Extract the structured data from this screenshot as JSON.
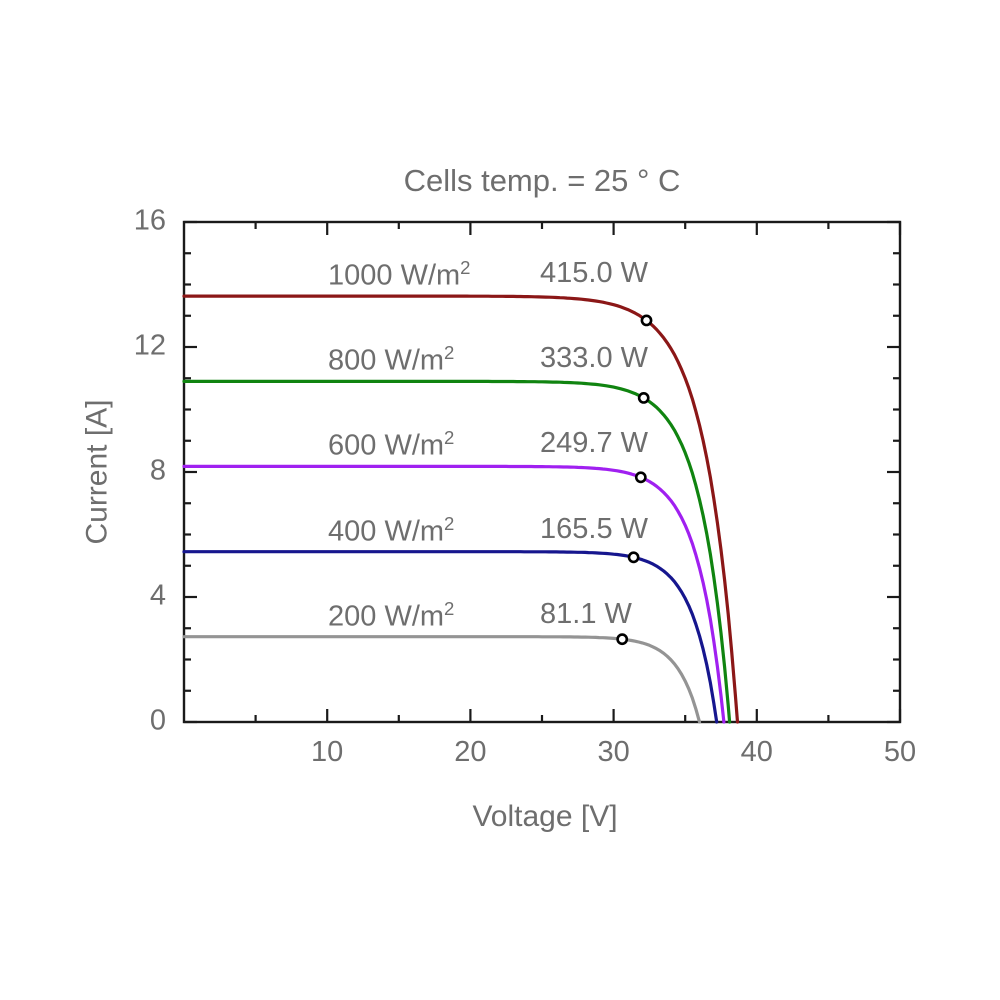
{
  "chart_data": {
    "type": "line",
    "title": "Cells temp. = 25 ° C",
    "xlabel": "Voltage [V]",
    "ylabel": "Current [A]",
    "xlim": [
      0,
      50
    ],
    "ylim": [
      0,
      16
    ],
    "x_major_ticks": [
      10,
      20,
      30,
      40,
      50
    ],
    "x_minor_tick_step": 5,
    "y_major_ticks": [
      0,
      4,
      8,
      12,
      16
    ],
    "y_minor_tick_step": 1,
    "grid": false,
    "legend_position": "inline-labels-above-curves",
    "axis_color": "#1a1a1a",
    "text_color": "#6e6e6e",
    "marker": {
      "shape": "circle",
      "fill": "#ffffff",
      "stroke": "#000000"
    },
    "series": [
      {
        "irradiance": 1000,
        "label_base": "1000 W/m",
        "label_sup": "2",
        "power_label": "415.0 W",
        "mpp_p": 415.0,
        "color": "#8b1717",
        "isc": 13.63,
        "voc": 38.65,
        "mpp_v": 32.3,
        "mpp_i": 12.85
      },
      {
        "irradiance": 800,
        "label_base": "800 W/m",
        "label_sup": "2",
        "power_label": "333.0 W",
        "mpp_p": 333.0,
        "color": "#108410",
        "isc": 10.9,
        "voc": 38.1,
        "mpp_v": 32.1,
        "mpp_i": 10.37
      },
      {
        "irradiance": 600,
        "label_base": "600 W/m",
        "label_sup": "2",
        "power_label": "249.7 W",
        "mpp_p": 249.7,
        "color": "#a020f0",
        "isc": 8.18,
        "voc": 37.7,
        "mpp_v": 31.9,
        "mpp_i": 7.83
      },
      {
        "irradiance": 400,
        "label_base": "400 W/m",
        "label_sup": "2",
        "power_label": "165.5 W",
        "mpp_p": 165.5,
        "color": "#16168e",
        "isc": 5.45,
        "voc": 37.2,
        "mpp_v": 31.4,
        "mpp_i": 5.27
      },
      {
        "irradiance": 200,
        "label_base": "200 W/m",
        "label_sup": "2",
        "power_label": "81.1 W",
        "mpp_p": 81.1,
        "color": "#949494",
        "isc": 2.73,
        "voc": 36.0,
        "mpp_v": 30.6,
        "mpp_i": 2.65
      }
    ]
  }
}
